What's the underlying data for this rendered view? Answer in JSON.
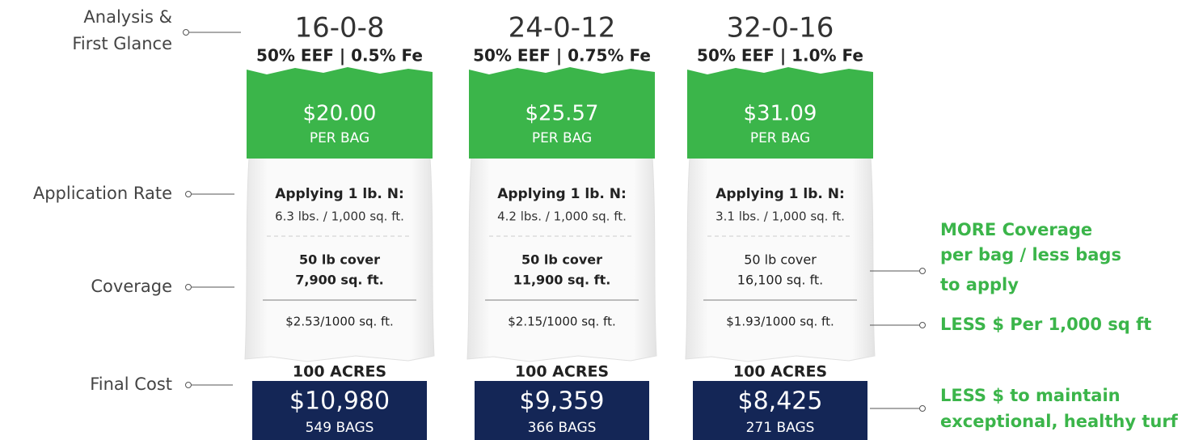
{
  "row_labels": [
    [
      "Analysis &",
      "First Glance"
    ],
    [
      "Application Rate"
    ],
    [
      "Coverage"
    ],
    [
      "Final Cost"
    ]
  ],
  "products": [
    {
      "analysis": "16-0-8",
      "detail": "50% EEF | 0.5% Fe",
      "price": "$20.00",
      "price_unit": "PER BAG",
      "rate_heading": "Applying 1 lb. N:",
      "rate": "6.3 lbs. / 1,000 sq. ft.",
      "cover_heading": "50 lb cover",
      "cover": "7,900 sq. ft.",
      "cost_per_1000": "$2.53/1000 sq. ft.",
      "acres": "100 ACRES",
      "total": "$10,980",
      "bags": "549 BAGS"
    },
    {
      "analysis": "24-0-12",
      "detail": "50% EEF | 0.75% Fe",
      "price": "$25.57",
      "price_unit": "PER BAG",
      "rate_heading": "Applying 1 lb. N:",
      "rate": "4.2 lbs. / 1,000 sq. ft.",
      "cover_heading": "50 lb cover",
      "cover": "11,900 sq. ft.",
      "cost_per_1000": "$2.15/1000 sq. ft.",
      "acres": "100 ACRES",
      "total": "$9,359",
      "bags": "366 BAGS"
    },
    {
      "analysis": "32-0-16",
      "detail": "50% EEF | 1.0% Fe",
      "price": "$31.09",
      "price_unit": "PER BAG",
      "rate_heading": "Applying 1 lb. N:",
      "rate": "3.1 lbs. / 1,000 sq. ft.",
      "cover_heading": "50 lb cover",
      "cover": "16,100 sq. ft.",
      "cost_per_1000": "$1.93/1000 sq. ft.",
      "acres": "100 ACRES",
      "total": "$8,425",
      "bags": "271 BAGS"
    }
  ],
  "callouts": [
    [
      "MORE Coverage",
      "per bag / less bags",
      "to apply"
    ],
    [
      "LESS $ Per 1,000 sq ft"
    ],
    [
      "LESS $ to maintain",
      "exceptional, healthy turf"
    ]
  ]
}
